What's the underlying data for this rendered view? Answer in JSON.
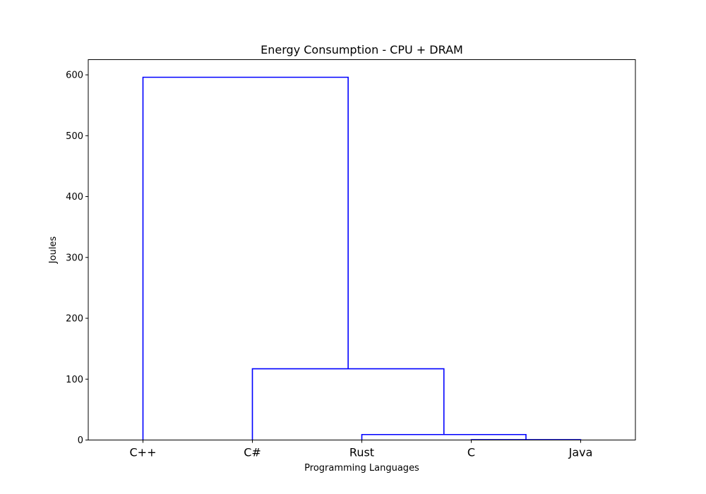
{
  "chart_data": {
    "type": "dendrogram",
    "title": "Energy Consumption - CPU + DRAM",
    "xlabel": "Programming Languages",
    "ylabel": "Joules",
    "ylim": [
      0,
      625
    ],
    "yticks": [
      0,
      100,
      200,
      300,
      400,
      500,
      600
    ],
    "leaves": [
      "C++",
      "C#",
      "Rust",
      "C",
      "Java"
    ],
    "line_color": "#0000ff",
    "merges": [
      {
        "left": "C",
        "right": "Java",
        "height": 0.5
      },
      {
        "left": "Rust",
        "right": "C + Java",
        "height": 9
      },
      {
        "left": "C#",
        "right": "Rust + C + Java",
        "height": 117
      },
      {
        "left": "C++",
        "right": "C# + Rust + C + Java",
        "height": 596
      }
    ],
    "links": [
      {
        "x1": 3,
        "x2": 4,
        "y_bottom_left": 0,
        "y_bottom_right": 0,
        "y_top": 0.5
      },
      {
        "x1": 2,
        "x2": 3.5,
        "y_bottom_left": 0,
        "y_bottom_right": 0.5,
        "y_top": 9
      },
      {
        "x1": 1,
        "x2": 2.75,
        "y_bottom_left": 0,
        "y_bottom_right": 9,
        "y_top": 117
      },
      {
        "x1": 0,
        "x2": 1.875,
        "y_bottom_left": 0,
        "y_bottom_right": 117,
        "y_top": 596
      }
    ],
    "grid": false,
    "legend": "none"
  }
}
